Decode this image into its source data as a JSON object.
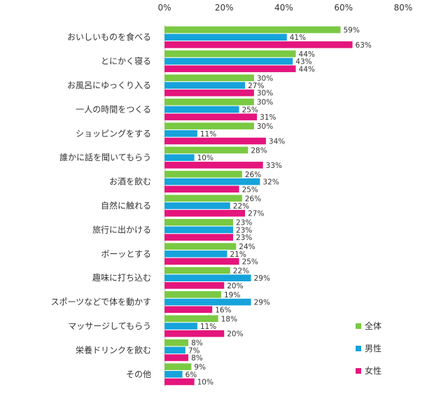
{
  "chart_data": {
    "type": "bar",
    "orientation": "horizontal",
    "categories": [
      "おいしいものを食べる",
      "とにかく寝る",
      "お風呂にゆっくり入る",
      "一人の時間をつくる",
      "ショッピングをする",
      "誰かに話を聞いてもらう",
      "お酒を飲む",
      "自然に触れる",
      "旅行に出かける",
      "ボーッとする",
      "趣味に打ち込む",
      "スポーツなどで体を動かす",
      "マッサージしてもらう",
      "栄養ドリンクを飲む",
      "その他"
    ],
    "series": [
      {
        "name": "全体",
        "color": "#7ac943",
        "values": [
          59,
          44,
          30,
          30,
          30,
          28,
          26,
          26,
          23,
          24,
          22,
          19,
          18,
          8,
          9
        ]
      },
      {
        "name": "男性",
        "color": "#16a3db",
        "values": [
          41,
          43,
          27,
          25,
          11,
          10,
          32,
          22,
          23,
          21,
          29,
          29,
          11,
          7,
          6
        ]
      },
      {
        "name": "女性",
        "color": "#e4157c",
        "values": [
          63,
          44,
          30,
          31,
          34,
          33,
          25,
          27,
          23,
          25,
          20,
          16,
          20,
          8,
          10
        ]
      }
    ],
    "xlim": [
      0,
      80
    ],
    "xticks": [
      "0%",
      "20%",
      "40%",
      "60%",
      "80%"
    ],
    "value_suffix": "%",
    "grid": false,
    "legend_position": "bottom-right"
  }
}
